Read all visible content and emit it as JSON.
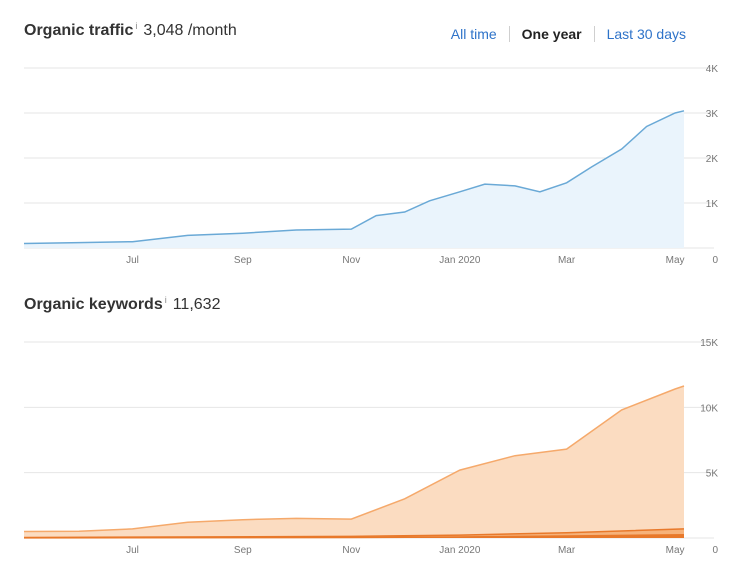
{
  "traffic": {
    "title": "Organic traffic",
    "info_icon": "i",
    "value": "3,048 /month"
  },
  "tabs": [
    {
      "label": "All time",
      "active": false
    },
    {
      "label": "One year",
      "active": true
    },
    {
      "label": "Last 30 days",
      "active": false
    }
  ],
  "keywords": {
    "title": "Organic keywords",
    "info_icon": "i",
    "value": "11,632"
  },
  "colors": {
    "traffic_line": "#6aa9d6",
    "traffic_fill": "#eaf4fc",
    "keywords_line": "#f5a96b",
    "keywords_fill": "#fbdcc1",
    "keywords_sub_fill": "#f6b27a",
    "keywords_sub_line": "#e8792b",
    "grid": "#e6e6e6"
  },
  "chart_data": [
    {
      "type": "area",
      "x_ticks": [
        "Jul",
        "Sep",
        "Nov",
        "Jan 2020",
        "Mar",
        "May"
      ],
      "y_ticks": [
        "0",
        "1K",
        "2K",
        "3K",
        "4K"
      ],
      "ylim": [
        0,
        4000
      ],
      "grid": true,
      "series": [
        {
          "x": [
            "2019-05-01",
            "2019-06-01",
            "2019-07-01",
            "2019-08-01",
            "2019-09-01",
            "2019-10-01",
            "2019-11-01",
            "2019-11-15",
            "2019-12-01",
            "2019-12-15",
            "2020-01-01",
            "2020-01-15",
            "2020-02-01",
            "2020-02-15",
            "2020-03-01",
            "2020-03-15",
            "2020-04-01",
            "2020-04-15",
            "2020-05-01",
            "2020-05-06"
          ],
          "values": [
            100,
            120,
            140,
            280,
            330,
            400,
            420,
            720,
            800,
            1050,
            1250,
            1420,
            1380,
            1250,
            1450,
            1800,
            2200,
            2700,
            3000,
            3048
          ]
        }
      ]
    },
    {
      "type": "area",
      "x_ticks": [
        "Jul",
        "Sep",
        "Nov",
        "Jan 2020",
        "Mar",
        "May"
      ],
      "y_ticks": [
        "0",
        "5K",
        "10K",
        "15K"
      ],
      "ylim": [
        0,
        15000
      ],
      "grid": true,
      "series": [
        {
          "x": [
            "2019-05-01",
            "2019-06-01",
            "2019-07-01",
            "2019-08-01",
            "2019-09-01",
            "2019-10-01",
            "2019-11-01",
            "2019-12-01",
            "2020-01-01",
            "2020-02-01",
            "2020-03-01",
            "2020-04-01",
            "2020-05-01",
            "2020-05-06"
          ],
          "values": [
            500,
            520,
            700,
            1200,
            1400,
            1500,
            1450,
            3000,
            5200,
            6300,
            6800,
            9800,
            11400,
            11632
          ]
        },
        {
          "x": [
            "2019-05-01",
            "2019-11-01",
            "2020-01-01",
            "2020-03-01",
            "2020-05-06"
          ],
          "values": [
            40,
            120,
            220,
            400,
            700
          ]
        },
        {
          "x": [
            "2019-05-01",
            "2019-11-01",
            "2020-01-01",
            "2020-03-01",
            "2020-05-06"
          ],
          "values": [
            10,
            40,
            80,
            150,
            250
          ]
        }
      ]
    }
  ]
}
